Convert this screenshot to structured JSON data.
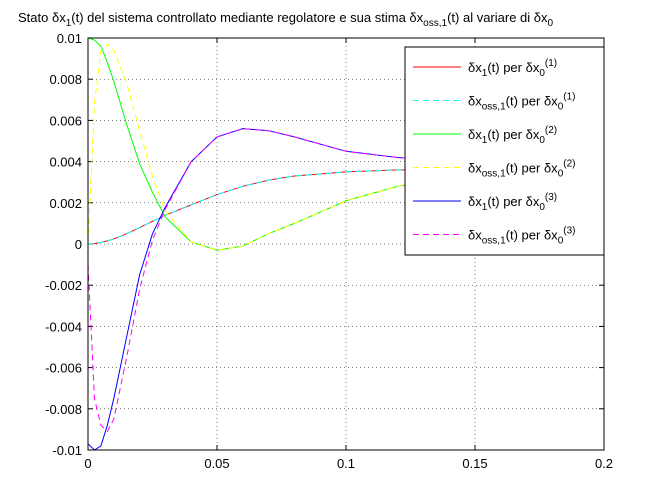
{
  "chart_data": {
    "type": "line",
    "title": [
      {
        "text": "Stato δx"
      },
      {
        "text": "1",
        "shift": "sub"
      },
      {
        "text": "(t) del sistema controllato mediante regolatore e sua stima δx"
      },
      {
        "text": "oss,1",
        "shift": "sub"
      },
      {
        "text": "(t) al variare di δx"
      },
      {
        "text": "0",
        "shift": "sub"
      }
    ],
    "x": [
      0,
      0.0025,
      0.005,
      0.0075,
      0.01,
      0.015,
      0.02,
      0.025,
      0.03,
      0.04,
      0.05,
      0.06,
      0.07,
      0.08,
      0.1,
      0.12,
      0.14,
      0.16,
      0.18,
      0.2
    ],
    "series": [
      {
        "name": [
          {
            "text": "δx"
          },
          {
            "text": "1",
            "shift": "sub"
          },
          {
            "text": "(t) per δx"
          },
          {
            "text": "0",
            "shift": "sub"
          },
          {
            "text": "(1)",
            "shift": "sup"
          }
        ],
        "color": "#ff0000",
        "dashed": false,
        "values": [
          0,
          2e-05,
          8e-05,
          0.00015,
          0.00025,
          0.0005,
          0.0008,
          0.0011,
          0.0014,
          0.0019,
          0.0024,
          0.0028,
          0.0031,
          0.0033,
          0.0035,
          0.0036,
          0.0036,
          0.0037,
          0.0037,
          0.0037
        ]
      },
      {
        "name": [
          {
            "text": "δx"
          },
          {
            "text": "oss,1",
            "shift": "sub"
          },
          {
            "text": "(t) per δx"
          },
          {
            "text": "0",
            "shift": "sub"
          },
          {
            "text": "(1)",
            "shift": "sup"
          }
        ],
        "color": "#00ffff",
        "dashed": true,
        "values": [
          0,
          2e-05,
          8e-05,
          0.00015,
          0.00025,
          0.0005,
          0.0008,
          0.0011,
          0.0014,
          0.0019,
          0.0024,
          0.0028,
          0.0031,
          0.0033,
          0.0035,
          0.0036,
          0.0036,
          0.0037,
          0.0037,
          0.0037
        ]
      },
      {
        "name": [
          {
            "text": "δx"
          },
          {
            "text": "1",
            "shift": "sub"
          },
          {
            "text": "(t) per δx"
          },
          {
            "text": "0",
            "shift": "sub"
          },
          {
            "text": "(2)",
            "shift": "sup"
          }
        ],
        "color": "#00ff00",
        "dashed": false,
        "values": [
          0.01,
          0.0099,
          0.0096,
          0.0088,
          0.0079,
          0.0058,
          0.0039,
          0.0025,
          0.0013,
          0.0001,
          -0.0003,
          -0.0001,
          0.0005,
          0.001,
          0.0021,
          0.0028,
          0.0032,
          0.0035,
          0.0036,
          0.0037
        ]
      },
      {
        "name": [
          {
            "text": "δx"
          },
          {
            "text": "oss,1",
            "shift": "sub"
          },
          {
            "text": "(t) per δx"
          },
          {
            "text": "0",
            "shift": "sub"
          },
          {
            "text": "(2)",
            "shift": "sup"
          }
        ],
        "color": "#ffff00",
        "dashed": true,
        "values": [
          0,
          0.0068,
          0.0094,
          0.0097,
          0.0094,
          0.0078,
          0.0055,
          0.0033,
          0.0016,
          0.0001,
          -0.0003,
          -0.0001,
          0.0005,
          0.001,
          0.0021,
          0.0028,
          0.0032,
          0.0035,
          0.0036,
          0.0037
        ]
      },
      {
        "name": [
          {
            "text": "δx"
          },
          {
            "text": "1",
            "shift": "sub"
          },
          {
            "text": "(t) per δx"
          },
          {
            "text": "0",
            "shift": "sub"
          },
          {
            "text": "(3)",
            "shift": "sup"
          }
        ],
        "color": "#0000ff",
        "dashed": false,
        "values": [
          -0.0097,
          -0.01,
          -0.0098,
          -0.0088,
          -0.0075,
          -0.0045,
          -0.0015,
          0.0005,
          0.0018,
          0.004,
          0.0052,
          0.0056,
          0.0055,
          0.0052,
          0.0045,
          0.0042,
          0.004,
          0.0039,
          0.0038,
          0.0038
        ]
      },
      {
        "name": [
          {
            "text": "δx"
          },
          {
            "text": "oss,1",
            "shift": "sub"
          },
          {
            "text": "(t) per δx"
          },
          {
            "text": "0",
            "shift": "sub"
          },
          {
            "text": "(3)",
            "shift": "sup"
          }
        ],
        "color": "#ff00ff",
        "dashed": true,
        "values": [
          -0.001,
          -0.0075,
          -0.0088,
          -0.0091,
          -0.0085,
          -0.0055,
          -0.0022,
          0.0002,
          0.0017,
          0.004,
          0.0052,
          0.0056,
          0.0055,
          0.0052,
          0.0045,
          0.0042,
          0.004,
          0.0039,
          0.0038,
          0.0038
        ]
      }
    ],
    "xlim": [
      0,
      0.2
    ],
    "xticks": [
      0,
      0.05,
      0.1,
      0.15,
      0.2
    ],
    "ylim": [
      -0.01,
      0.01
    ],
    "yticks": [
      -0.01,
      -0.008,
      -0.006,
      -0.004,
      -0.002,
      0,
      0.002,
      0.004,
      0.006,
      0.008,
      0.01
    ],
    "grid": true,
    "legend": "upper right"
  }
}
